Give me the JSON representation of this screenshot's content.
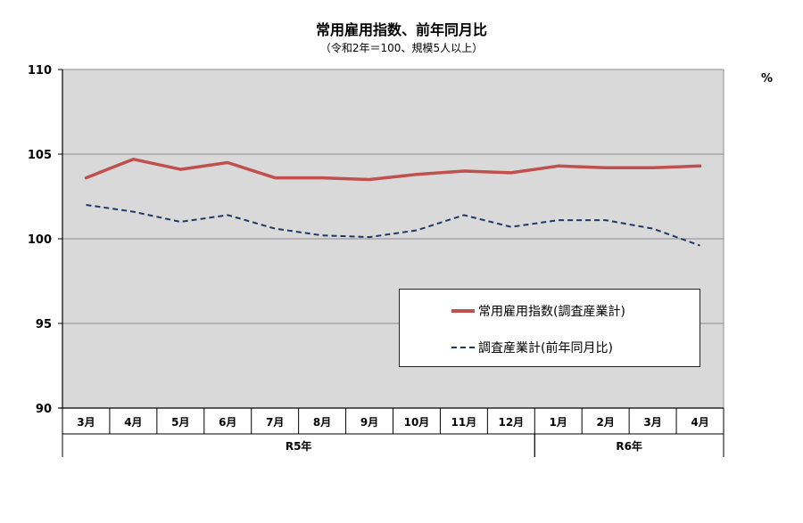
{
  "chart_data": {
    "type": "line",
    "title": "常用雇用指数、前年同月比",
    "subtitle": "（令和2年＝100、規模5人以上）",
    "unit": "%",
    "categories": [
      "3月",
      "4月",
      "5月",
      "6月",
      "7月",
      "8月",
      "9月",
      "10月",
      "11月",
      "12月",
      "1月",
      "2月",
      "3月",
      "4月"
    ],
    "year_groups": [
      {
        "label": "R5年",
        "start": 0,
        "end": 9
      },
      {
        "label": "R6年",
        "start": 10,
        "end": 13
      }
    ],
    "series": [
      {
        "name": "常用雇用指数(調査産業計)",
        "color": "#c0504d",
        "style": "solid",
        "values": [
          103.6,
          104.7,
          104.1,
          104.5,
          103.6,
          103.6,
          103.5,
          103.8,
          104.0,
          103.9,
          104.3,
          104.2,
          104.2,
          104.3
        ]
      },
      {
        "name": "調査産業計(前年同月比)",
        "color": "#1f3864",
        "style": "dashed",
        "values": [
          102.0,
          101.6,
          101.0,
          101.4,
          100.6,
          100.2,
          100.1,
          100.5,
          101.4,
          100.7,
          101.1,
          101.1,
          100.6,
          99.6
        ]
      }
    ],
    "ylim": [
      90,
      110
    ],
    "yticks": [
      90,
      95,
      100,
      105,
      110
    ],
    "grid": true,
    "plot_background": "#d9d9d9",
    "legend_position": "lower-right"
  }
}
